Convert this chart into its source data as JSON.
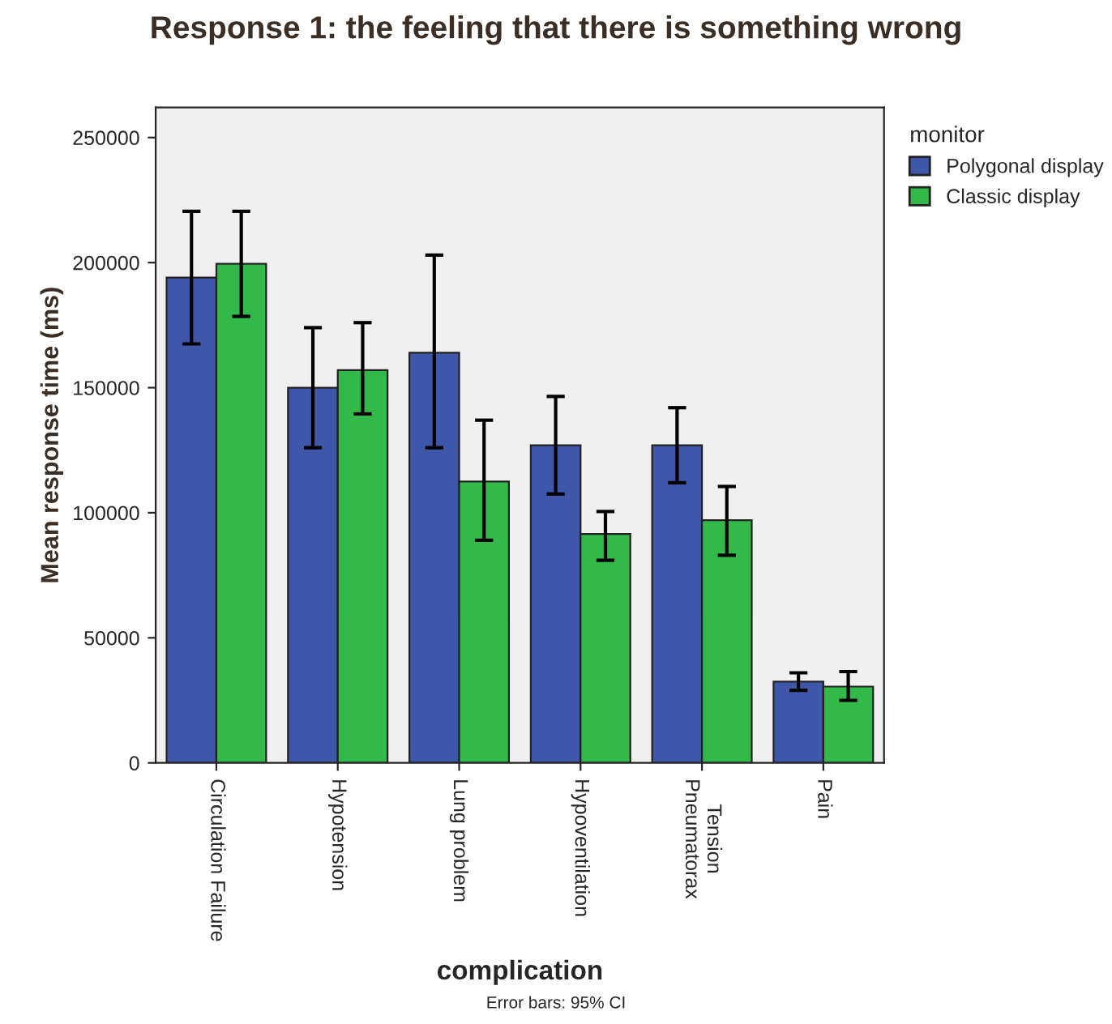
{
  "chart_data": {
    "type": "bar",
    "title": "Response 1: the feeling that there is something wrong",
    "xlabel": "complication",
    "ylabel": "Mean response time (ms)",
    "legend_title": "monitor",
    "legend": "top right",
    "categories": [
      "Circulation Failure",
      "Hypotension",
      "Lung problem",
      "Hypoventilation",
      "Tension\nPneumatorax",
      "Pain"
    ],
    "series": [
      {
        "name": "Polygonal display",
        "color": "#3f57a8",
        "values": [
          194000,
          150000,
          164000,
          127000,
          127000,
          32500
        ],
        "errors": [
          [
            167500,
            220500
          ],
          [
            126000,
            174000
          ],
          [
            126000,
            203000
          ],
          [
            107500,
            146500
          ],
          [
            112000,
            142000
          ],
          [
            29000,
            36000
          ]
        ]
      },
      {
        "name": "Classic display",
        "color": "#33b84a",
        "values": [
          199500,
          157000,
          112500,
          91500,
          97000,
          30500
        ],
        "errors": [
          [
            178500,
            220500
          ],
          [
            139500,
            176000
          ],
          [
            89000,
            137000
          ],
          [
            81000,
            100500
          ],
          [
            83000,
            110500
          ],
          [
            25000,
            36500
          ]
        ]
      }
    ],
    "ylim": [
      0,
      262000
    ],
    "yticks": [
      0,
      50000,
      100000,
      150000,
      200000,
      250000
    ],
    "grid": false,
    "annotations": [
      "Error bars: 95% CI"
    ]
  }
}
